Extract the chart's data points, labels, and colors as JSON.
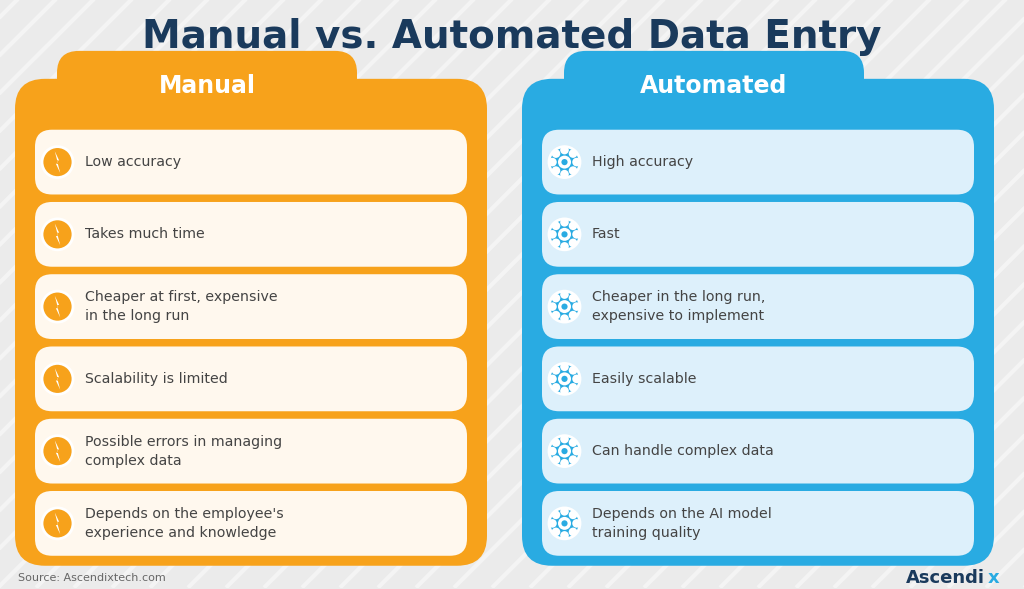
{
  "title": "Manual vs. Automated Data Entry",
  "title_color": "#1a3a5c",
  "title_fontsize": 28,
  "background_color": "#ebebeb",
  "source_text": "Source: Ascendixtech.com",
  "brand_text": "Ascendix",
  "manual_header": "Manual",
  "automated_header": "Automated",
  "manual_bg_color": "#F7A21B",
  "automated_bg_color": "#29ABE2",
  "header_text_color": "#ffffff",
  "card_bg_manual": "#FFF8EE",
  "card_bg_auto": "#ddf0fb",
  "manual_icon_color": "#F7A21B",
  "automated_icon_color": "#29ABE2",
  "manual_items": [
    "Low accuracy",
    "Takes much time",
    "Cheaper at first, expensive\nin the long run",
    "Scalability is limited",
    "Possible errors in managing\ncomplex data",
    "Depends on the employee's\nexperience and knowledge"
  ],
  "automated_items": [
    "High accuracy",
    "Fast",
    "Cheaper in the long run,\nexpensive to implement",
    "Easily scalable",
    "Can handle complex data",
    "Depends on the AI model\ntraining quality"
  ]
}
